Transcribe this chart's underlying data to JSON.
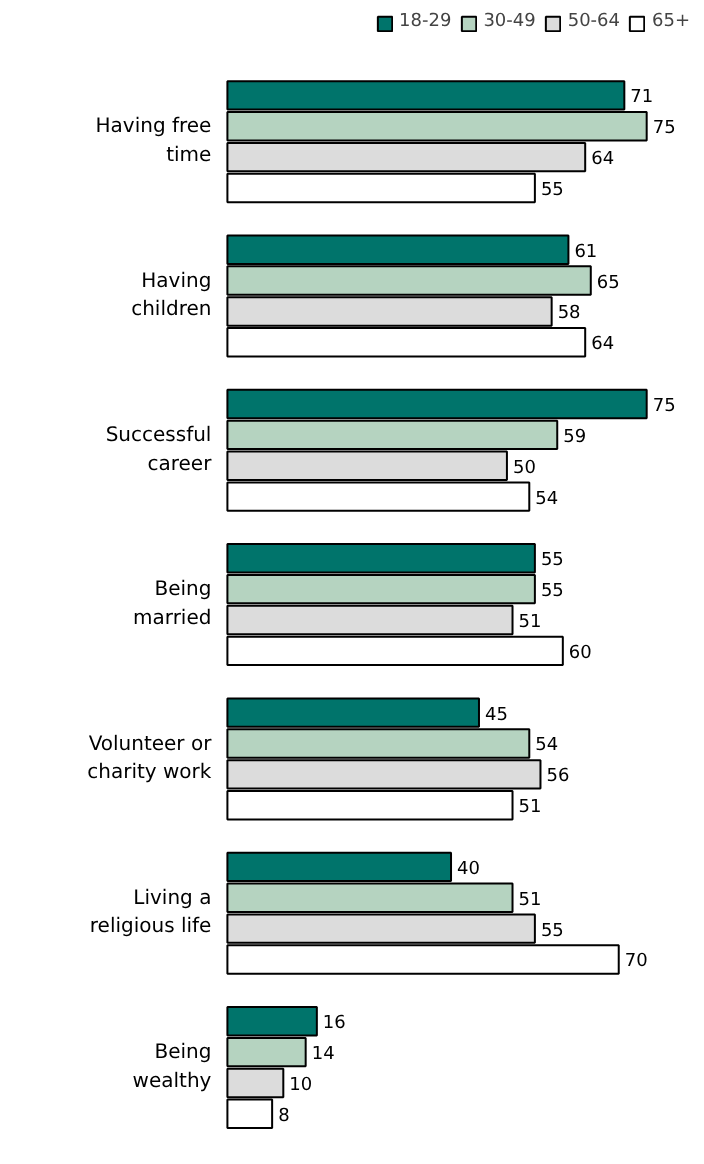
{
  "chart_data": {
    "type": "bar",
    "orientation": "horizontal",
    "categories": [
      "Having free\ntime",
      "Having\nchildren",
      "Successful\ncareer",
      "Being\nmarried",
      "Volunteer or\ncharity work",
      "Living a\nreligious life",
      "Being\nwealthy"
    ],
    "series": [
      {
        "name": "18-29",
        "color": "#00746b",
        "values": [
          71,
          61,
          75,
          55,
          45,
          40,
          16
        ]
      },
      {
        "name": "30-49",
        "color": "#b5d3c0",
        "values": [
          75,
          65,
          59,
          55,
          54,
          51,
          14
        ]
      },
      {
        "name": "50-64",
        "color": "#dcdcdc",
        "values": [
          64,
          58,
          50,
          51,
          56,
          55,
          10
        ]
      },
      {
        "name": "65+",
        "color": "#ffffff",
        "values": [
          55,
          64,
          54,
          60,
          51,
          70,
          8
        ]
      }
    ],
    "data_labels": true,
    "legend": "top right"
  }
}
